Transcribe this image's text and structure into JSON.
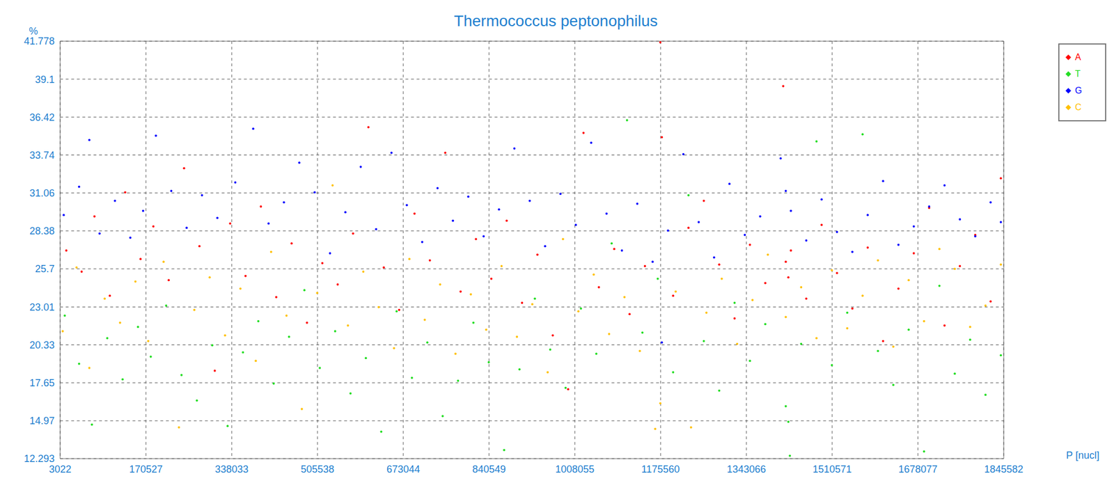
{
  "chart_data": {
    "type": "scatter",
    "title": "Thermococcus peptonophilus",
    "x_label": "P [nucl]",
    "y_label": "%",
    "xlim": [
      3022,
      1845582
    ],
    "xticks": [
      3022,
      170527,
      338033,
      505538,
      673044,
      840549,
      1008055,
      1175560,
      1343066,
      1510571,
      1678077,
      1845582
    ],
    "ylim": [
      12.293,
      41.778
    ],
    "yticks": [
      12.293,
      14.97,
      17.65,
      20.33,
      23.01,
      25.7,
      28.38,
      31.06,
      33.74,
      36.42,
      39.1,
      41.778
    ],
    "grid": true,
    "legend": "upper right",
    "marker": "circle",
    "series": [
      {
        "name": "A",
        "color": "#ff0000",
        "x": [
          15000,
          45000,
          70000,
          100000,
          130000,
          160000,
          185000,
          215000,
          245000,
          275000,
          305000,
          335000,
          365000,
          395000,
          425000,
          455000,
          485000,
          515000,
          545000,
          575000,
          605000,
          635000,
          665000,
          695000,
          725000,
          755000,
          785000,
          815000,
          845000,
          875000,
          905000,
          935000,
          965000,
          995000,
          1025000,
          1055000,
          1085000,
          1115000,
          1145000,
          1175000,
          1178000,
          1200000,
          1230000,
          1260000,
          1290000,
          1320000,
          1350000,
          1380000,
          1415000,
          1420000,
          1425000,
          1430000,
          1460000,
          1490000,
          1520000,
          1550000,
          1580000,
          1610000,
          1640000,
          1670000,
          1700000,
          1730000,
          1760000,
          1790000,
          1820000,
          1840000
        ],
        "values": [
          27.0,
          25.5,
          29.4,
          23.8,
          31.1,
          26.4,
          28.7,
          24.9,
          32.8,
          27.3,
          18.5,
          28.9,
          25.2,
          30.1,
          23.7,
          27.5,
          21.9,
          26.1,
          24.6,
          28.2,
          35.7,
          25.8,
          22.8,
          29.6,
          26.3,
          33.9,
          24.1,
          27.8,
          25.0,
          29.1,
          23.3,
          26.7,
          21.0,
          17.2,
          35.3,
          24.4,
          27.1,
          22.5,
          25.9,
          41.7,
          35.0,
          23.8,
          28.6,
          30.5,
          26.0,
          22.2,
          27.4,
          24.7,
          38.6,
          26.2,
          25.1,
          27.0,
          23.6,
          28.8,
          25.4,
          22.9,
          27.2,
          20.6,
          24.3,
          26.8,
          30.0,
          21.7,
          25.9,
          28.1,
          23.4,
          32.1
        ]
      },
      {
        "name": "T",
        "color": "#22dd22",
        "x": [
          12000,
          40000,
          65000,
          95000,
          125000,
          155000,
          180000,
          210000,
          240000,
          270000,
          300000,
          330000,
          360000,
          390000,
          420000,
          450000,
          480000,
          510000,
          540000,
          570000,
          600000,
          630000,
          660000,
          690000,
          720000,
          750000,
          780000,
          810000,
          840000,
          870000,
          900000,
          930000,
          960000,
          990000,
          1020000,
          1050000,
          1080000,
          1110000,
          1140000,
          1170000,
          1200000,
          1230000,
          1260000,
          1290000,
          1320000,
          1350000,
          1380000,
          1420000,
          1425000,
          1428000,
          1450000,
          1480000,
          1510000,
          1540000,
          1570000,
          1600000,
          1630000,
          1660000,
          1690000,
          1720000,
          1750000,
          1780000,
          1810000,
          1840000
        ],
        "values": [
          22.4,
          19.0,
          14.7,
          20.8,
          17.9,
          21.6,
          19.5,
          23.1,
          18.2,
          16.4,
          20.3,
          14.6,
          19.8,
          22.0,
          17.6,
          20.9,
          24.2,
          18.7,
          21.3,
          16.9,
          19.4,
          14.2,
          22.7,
          18.0,
          20.5,
          15.3,
          17.8,
          21.9,
          19.1,
          12.9,
          18.6,
          23.6,
          20.0,
          17.3,
          22.9,
          19.7,
          27.5,
          36.2,
          21.2,
          25.0,
          18.4,
          30.9,
          20.6,
          17.1,
          23.3,
          19.2,
          21.8,
          16.0,
          14.9,
          12.5,
          20.4,
          34.7,
          18.9,
          22.6,
          35.2,
          19.9,
          17.5,
          21.4,
          12.8,
          24.5,
          18.3,
          20.7,
          16.8,
          19.6
        ]
      },
      {
        "name": "G",
        "color": "#0000ff",
        "x": [
          10000,
          40000,
          60000,
          80000,
          110000,
          140000,
          165000,
          190000,
          220000,
          250000,
          280000,
          310000,
          345000,
          380000,
          410000,
          440000,
          470000,
          500000,
          530000,
          560000,
          590000,
          620000,
          650000,
          680000,
          710000,
          740000,
          770000,
          800000,
          830000,
          860000,
          890000,
          920000,
          950000,
          980000,
          1010000,
          1040000,
          1070000,
          1100000,
          1130000,
          1160000,
          1178000,
          1190000,
          1220000,
          1250000,
          1280000,
          1310000,
          1340000,
          1370000,
          1410000,
          1420000,
          1430000,
          1460000,
          1490000,
          1520000,
          1550000,
          1580000,
          1610000,
          1640000,
          1670000,
          1700000,
          1730000,
          1760000,
          1790000,
          1820000,
          1840000
        ],
        "values": [
          29.5,
          31.5,
          34.8,
          28.2,
          30.5,
          27.9,
          29.8,
          35.1,
          31.2,
          28.6,
          30.9,
          29.3,
          31.8,
          35.6,
          28.9,
          30.4,
          33.2,
          31.1,
          26.8,
          29.7,
          32.9,
          28.5,
          33.9,
          30.2,
          27.6,
          31.4,
          29.1,
          30.8,
          28.0,
          29.9,
          34.2,
          30.5,
          27.3,
          31.0,
          28.8,
          34.6,
          29.6,
          27.0,
          30.3,
          26.2,
          20.5,
          28.4,
          33.8,
          29.0,
          26.5,
          31.7,
          28.1,
          29.4,
          33.5,
          31.2,
          29.8,
          27.7,
          30.6,
          28.3,
          26.9,
          29.5,
          31.9,
          27.4,
          28.7,
          30.1,
          31.6,
          29.2,
          28.0,
          30.4,
          29.0
        ]
      },
      {
        "name": "C",
        "color": "#ffc000",
        "x": [
          8000,
          35000,
          60000,
          90000,
          120000,
          150000,
          175000,
          205000,
          235000,
          265000,
          295000,
          325000,
          355000,
          385000,
          415000,
          445000,
          475000,
          505000,
          535000,
          565000,
          595000,
          625000,
          655000,
          685000,
          715000,
          745000,
          775000,
          805000,
          835000,
          865000,
          895000,
          925000,
          955000,
          985000,
          1015000,
          1045000,
          1075000,
          1105000,
          1135000,
          1165000,
          1175000,
          1205000,
          1235000,
          1265000,
          1295000,
          1325000,
          1355000,
          1385000,
          1420000,
          1450000,
          1480000,
          1510000,
          1540000,
          1570000,
          1600000,
          1630000,
          1660000,
          1690000,
          1720000,
          1750000,
          1780000,
          1810000,
          1840000
        ],
        "values": [
          21.3,
          25.8,
          18.7,
          23.6,
          21.9,
          24.8,
          20.6,
          26.2,
          14.5,
          22.8,
          25.1,
          21.0,
          24.3,
          19.2,
          26.9,
          22.4,
          15.8,
          24.0,
          31.6,
          21.7,
          25.5,
          23.0,
          20.1,
          26.4,
          22.1,
          24.6,
          19.7,
          23.9,
          21.4,
          25.9,
          20.9,
          23.2,
          18.4,
          27.8,
          22.7,
          25.3,
          21.1,
          23.7,
          19.9,
          14.4,
          16.2,
          24.1,
          14.5,
          22.6,
          25.0,
          20.4,
          23.5,
          26.7,
          22.3,
          24.4,
          20.8,
          25.6,
          21.5,
          23.8,
          26.3,
          20.2,
          24.9,
          22.0,
          27.1,
          25.7,
          21.6,
          23.1,
          26.0
        ]
      }
    ]
  }
}
